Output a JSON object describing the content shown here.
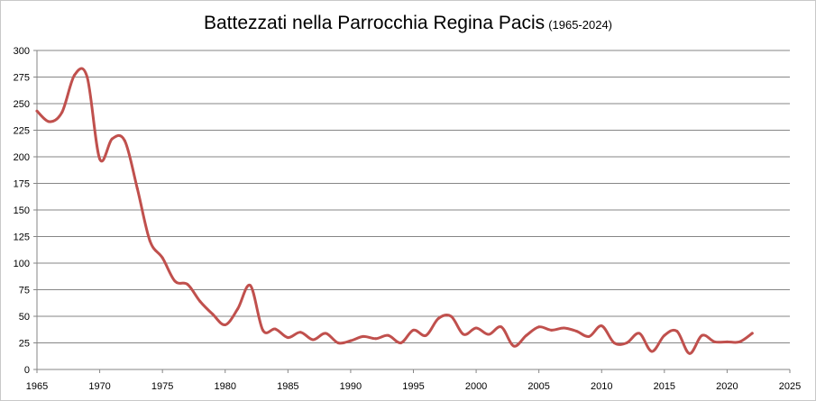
{
  "chart_data": {
    "type": "line",
    "title": "Battezzati nella Parrocchia Regina Pacis",
    "subtitle": "(1965-2024)",
    "xlabel": "",
    "ylabel": "",
    "xlim": [
      1965,
      2025
    ],
    "ylim": [
      0,
      300
    ],
    "x_ticks": [
      1965,
      1970,
      1975,
      1980,
      1985,
      1990,
      1995,
      2000,
      2005,
      2010,
      2015,
      2020,
      2025
    ],
    "y_ticks": [
      0,
      25,
      50,
      75,
      100,
      125,
      150,
      175,
      200,
      225,
      250,
      275,
      300
    ],
    "grid": "horizontal",
    "legend": "none",
    "line_color": "#c0504d",
    "series": [
      {
        "x": [
          1965,
          1966,
          1967,
          1968,
          1969,
          1970,
          1971,
          1972,
          1973,
          1974,
          1975,
          1976,
          1977,
          1978,
          1979,
          1980,
          1981,
          1982,
          1983,
          1984,
          1985,
          1986,
          1987,
          1988,
          1989,
          1990,
          1991,
          1992,
          1993,
          1994,
          1995,
          1996,
          1997,
          1998,
          1999,
          2000,
          2001,
          2002,
          2003,
          2004,
          2005,
          2006,
          2007,
          2008,
          2009,
          2010,
          2011,
          2012,
          2013,
          2014,
          2015,
          2016,
          2017,
          2018,
          2019,
          2020,
          2021,
          2022
        ],
        "values": [
          243,
          233,
          242,
          277,
          275,
          198,
          217,
          215,
          170,
          121,
          105,
          83,
          80,
          64,
          52,
          42,
          57,
          79,
          37,
          38,
          30,
          35,
          28,
          34,
          25,
          27,
          31,
          29,
          32,
          25,
          37,
          32,
          48,
          50,
          33,
          39,
          33,
          40,
          22,
          32,
          40,
          37,
          39,
          36,
          31,
          41,
          25,
          25,
          34,
          17,
          32,
          36,
          15,
          32,
          26,
          26,
          26,
          34
        ]
      }
    ]
  }
}
